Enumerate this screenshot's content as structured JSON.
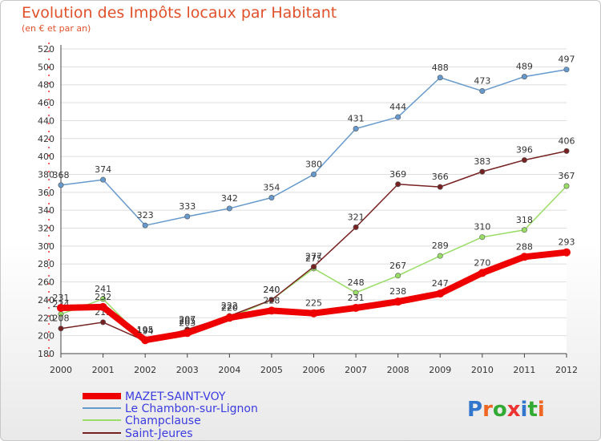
{
  "title": "Evolution des Impôts locaux par Habitant",
  "subtitle": "(en € et par an)",
  "logo": "Proxiti",
  "colors": {
    "title": "#e0512b",
    "grid": "#dddddd",
    "legend_text": "#3b3be0"
  },
  "chart_data": {
    "type": "line",
    "title": "Evolution des Impôts locaux par Habitant",
    "subtitle": "(en € et par an)",
    "xlabel": "",
    "ylabel": "",
    "x": [
      "2000",
      "2001",
      "2002",
      "2003",
      "2004",
      "2005",
      "2006",
      "2007",
      "2008",
      "2009",
      "2010",
      "2011",
      "2012"
    ],
    "ylim": [
      180,
      520
    ],
    "yticks": [
      180,
      200,
      220,
      240,
      260,
      280,
      300,
      320,
      340,
      360,
      380,
      400,
      420,
      440,
      460,
      480,
      500,
      520
    ],
    "grid": "horizontal",
    "legend_position": "bottom-left",
    "series": [
      {
        "name": "MAZET-SAINT-VOY",
        "color": "#ee0000",
        "width": 8,
        "values": [
          231,
          232,
          195,
          203,
          220,
          228,
          225,
          231,
          238,
          247,
          270,
          288,
          293
        ]
      },
      {
        "name": "Le Chambon-sur-Lignon",
        "color": "#6699cc",
        "width": 1.5,
        "values": [
          368,
          374,
          323,
          333,
          342,
          354,
          380,
          431,
          444,
          488,
          473,
          489,
          497
        ]
      },
      {
        "name": "Champclause",
        "color": "#99dd66",
        "width": 1.5,
        "values": [
          224,
          241,
          194,
          205,
          220,
          240,
          275,
          248,
          267,
          289,
          310,
          318,
          367
        ]
      },
      {
        "name": "Saint-Jeures",
        "color": "#772222",
        "width": 1.5,
        "values": [
          208,
          215,
          194,
          207,
          222,
          240,
          277,
          321,
          369,
          366,
          383,
          396,
          406
        ]
      }
    ]
  }
}
